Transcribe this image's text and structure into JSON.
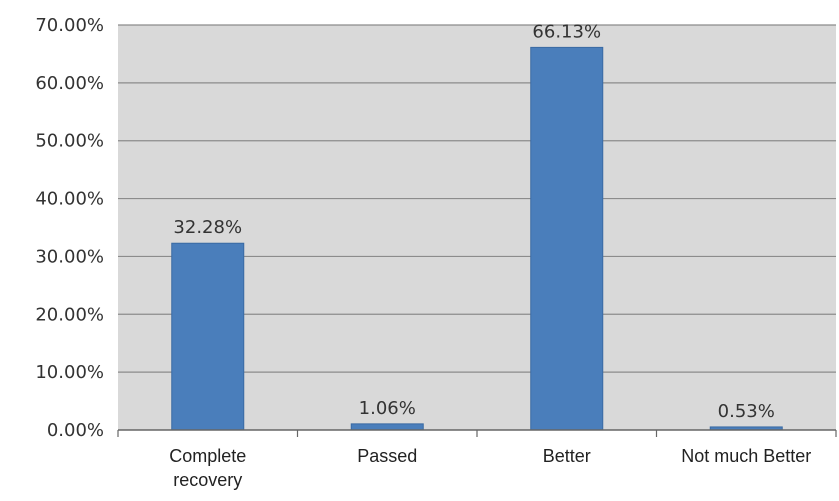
{
  "chart_data": {
    "type": "bar",
    "categories": [
      "Complete recovery",
      "Passed",
      "Better",
      "Not much Better"
    ],
    "category_lines": [
      [
        "Complete",
        "recovery"
      ],
      [
        "Passed"
      ],
      [
        "Better"
      ],
      [
        "Not much Better"
      ]
    ],
    "values": [
      32.28,
      1.06,
      66.13,
      0.53
    ],
    "data_labels": [
      "32.28%",
      "1.06%",
      "66.13%",
      "0.53%"
    ],
    "y_ticks": [
      0,
      10,
      20,
      30,
      40,
      50,
      60,
      70
    ],
    "y_tick_labels": [
      "0.00%",
      "10.00%",
      "20.00%",
      "30.00%",
      "40.00%",
      "50.00%",
      "60.00%",
      "70.00%"
    ],
    "ylim": [
      0,
      70
    ],
    "grid": true,
    "legend": "none",
    "bar_color": "#4a7ebb",
    "bar_edge_color": "#3a6aa3",
    "plot_bg": "#d9d9d9",
    "grid_color": "#8c8c8c"
  }
}
